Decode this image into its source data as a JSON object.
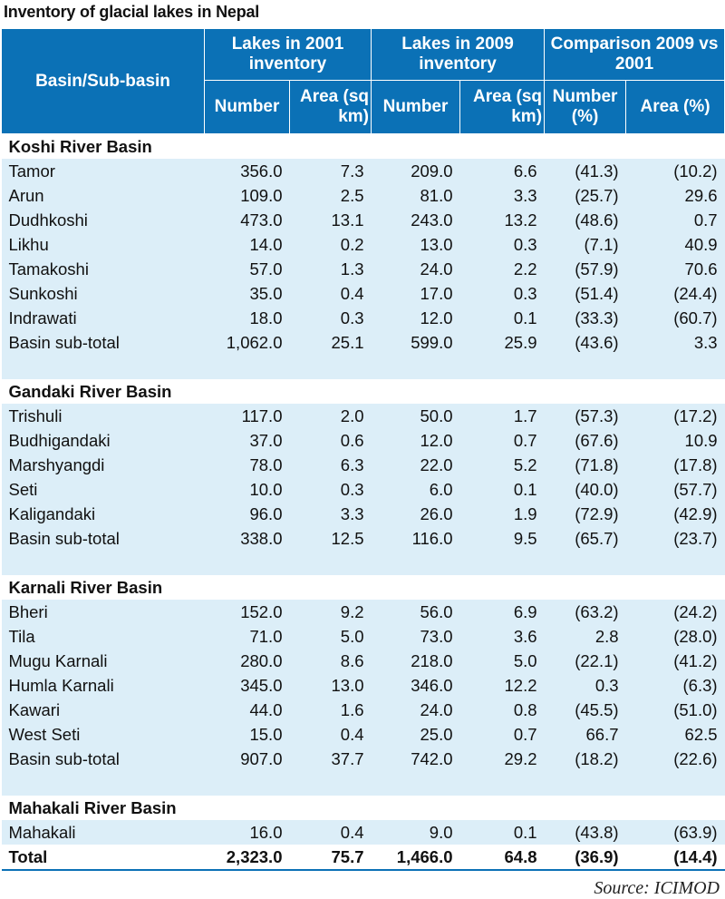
{
  "title": "Inventory of glacial lakes in Nepal",
  "source": "Source: ICIMOD",
  "colors": {
    "header_bg": "#0b71b6",
    "row_bg": "#dceef8"
  },
  "chart_data": {
    "type": "table",
    "header": {
      "basin": "Basin/Sub-basin",
      "group_2001": "Lakes in 2001 inventory",
      "group_2009": "Lakes in 2009 inventory",
      "group_cmp": "Comparison 2009 vs 2001",
      "number": "Number",
      "area_sq_km": "Area (sq km)",
      "number_pct": "Number (%)",
      "area_pct": "Area (%)"
    },
    "sections": [
      {
        "name": "Koshi River Basin",
        "rows": [
          [
            "Tamor",
            "356.0",
            "7.3",
            "209.0",
            "6.6",
            "(41.3)",
            "(10.2)"
          ],
          [
            "Arun",
            "109.0",
            "2.5",
            "81.0",
            "3.3",
            "(25.7)",
            "29.6"
          ],
          [
            "Dudhkoshi",
            "473.0",
            "13.1",
            "243.0",
            "13.2",
            "(48.6)",
            "0.7"
          ],
          [
            "Likhu",
            "14.0",
            "0.2",
            "13.0",
            "0.3",
            "(7.1)",
            "40.9"
          ],
          [
            "Tamakoshi",
            "57.0",
            "1.3",
            "24.0",
            "2.2",
            "(57.9)",
            "70.6"
          ],
          [
            "Sunkoshi",
            "35.0",
            "0.4",
            "17.0",
            "0.3",
            "(51.4)",
            "(24.4)"
          ],
          [
            "Indrawati",
            "18.0",
            "0.3",
            "12.0",
            "0.1",
            "(33.3)",
            "(60.7)"
          ],
          [
            "Basin sub-total",
            "1,062.0",
            "25.1",
            "599.0",
            "25.9",
            "(43.6)",
            "3.3"
          ]
        ]
      },
      {
        "name": "Gandaki River Basin",
        "rows": [
          [
            "Trishuli",
            "117.0",
            "2.0",
            "50.0",
            "1.7",
            "(57.3)",
            "(17.2)"
          ],
          [
            "Budhigandaki",
            "37.0",
            "0.6",
            "12.0",
            "0.7",
            "(67.6)",
            "10.9"
          ],
          [
            "Marshyangdi",
            "78.0",
            "6.3",
            "22.0",
            "5.2",
            "(71.8)",
            "(17.8)"
          ],
          [
            "Seti",
            "10.0",
            "0.3",
            "6.0",
            "0.1",
            "(40.0)",
            "(57.7)"
          ],
          [
            "Kaligandaki",
            "96.0",
            "3.3",
            "26.0",
            "1.9",
            "(72.9)",
            "(42.9)"
          ],
          [
            "Basin sub-total",
            "338.0",
            "12.5",
            "116.0",
            "9.5",
            "(65.7)",
            "(23.7)"
          ]
        ]
      },
      {
        "name": "Karnali River Basin",
        "rows": [
          [
            "Bheri",
            "152.0",
            "9.2",
            "56.0",
            "6.9",
            "(63.2)",
            "(24.2)"
          ],
          [
            "Tila",
            "71.0",
            "5.0",
            "73.0",
            "3.6",
            "2.8",
            "(28.0)"
          ],
          [
            "Mugu Karnali",
            "280.0",
            "8.6",
            "218.0",
            "5.0",
            "(22.1)",
            "(41.2)"
          ],
          [
            "Humla Karnali",
            "345.0",
            "13.0",
            "346.0",
            "12.2",
            "0.3",
            "(6.3)"
          ],
          [
            "Kawari",
            "44.0",
            "1.6",
            "24.0",
            "0.8",
            "(45.5)",
            "(51.0)"
          ],
          [
            "West Seti",
            "15.0",
            "0.4",
            "25.0",
            "0.7",
            "66.7",
            "62.5"
          ],
          [
            "Basin sub-total",
            "907.0",
            "37.7",
            "742.0",
            "29.2",
            "(18.2)",
            "(22.6)"
          ]
        ]
      },
      {
        "name": "Mahakali River Basin",
        "rows": [
          [
            "Mahakali",
            "16.0",
            "0.4",
            "9.0",
            "0.1",
            "(43.8)",
            "(63.9)"
          ]
        ]
      }
    ],
    "total": [
      "Total",
      "2,323.0",
      "75.7",
      "1,466.0",
      "64.8",
      "(36.9)",
      "(14.4)"
    ]
  }
}
